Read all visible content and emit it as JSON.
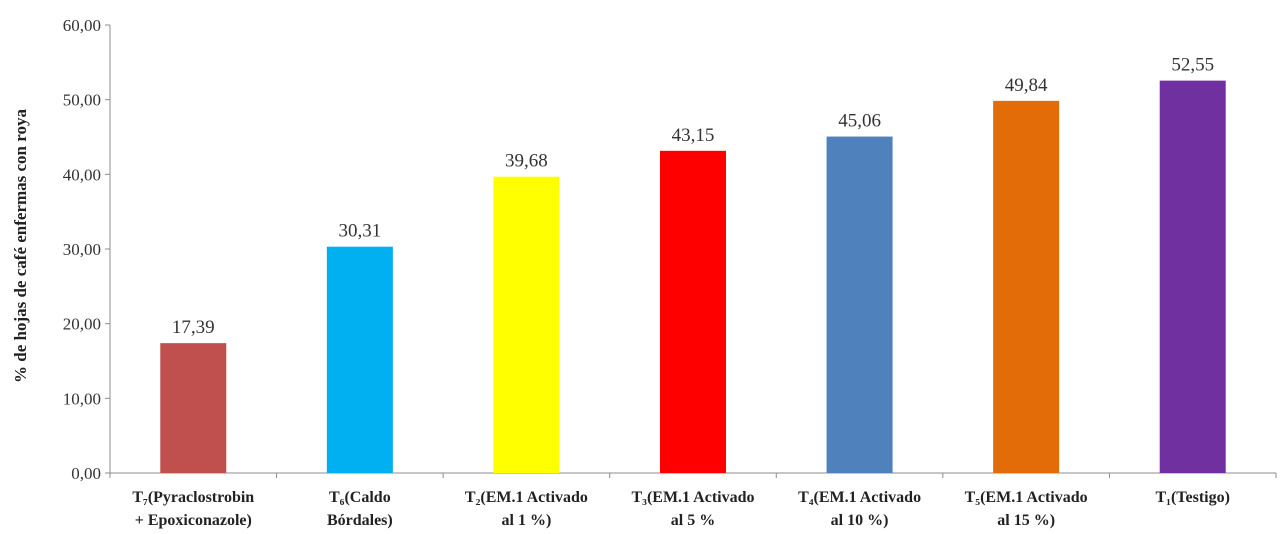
{
  "chart_data": {
    "type": "bar",
    "ylabel": "% de hojas de café enfermas con roya",
    "ylim": [
      0,
      60
    ],
    "yticks": [
      "0,00",
      "10,00",
      "20,00",
      "30,00",
      "40,00",
      "50,00",
      "60,00"
    ],
    "grid": false,
    "categories": [
      [
        "T₇(Pyraclostrobin",
        "+ Epoxiconazole)"
      ],
      [
        "T₆(Caldo",
        "Bórdales)"
      ],
      [
        "T₂(EM.1 Activado",
        "al 1 %)"
      ],
      [
        "T₃(EM.1 Activado",
        "al 5 %"
      ],
      [
        "T₄(EM.1 Activado",
        "al 10 %)"
      ],
      [
        "T₅(EM.1 Activado",
        "al 15 %)"
      ],
      [
        "T₁(Testigo)"
      ]
    ],
    "values": [
      17.39,
      30.31,
      39.68,
      43.15,
      45.06,
      49.84,
      52.55
    ],
    "value_labels": [
      "17,39",
      "30,31",
      "39,68",
      "43,15",
      "45,06",
      "49,84",
      "52,55"
    ],
    "colors": [
      "#c0504d",
      "#00b0f0",
      "#ffff00",
      "#ff0000",
      "#4f81bd",
      "#e36c09",
      "#7030a0"
    ]
  }
}
